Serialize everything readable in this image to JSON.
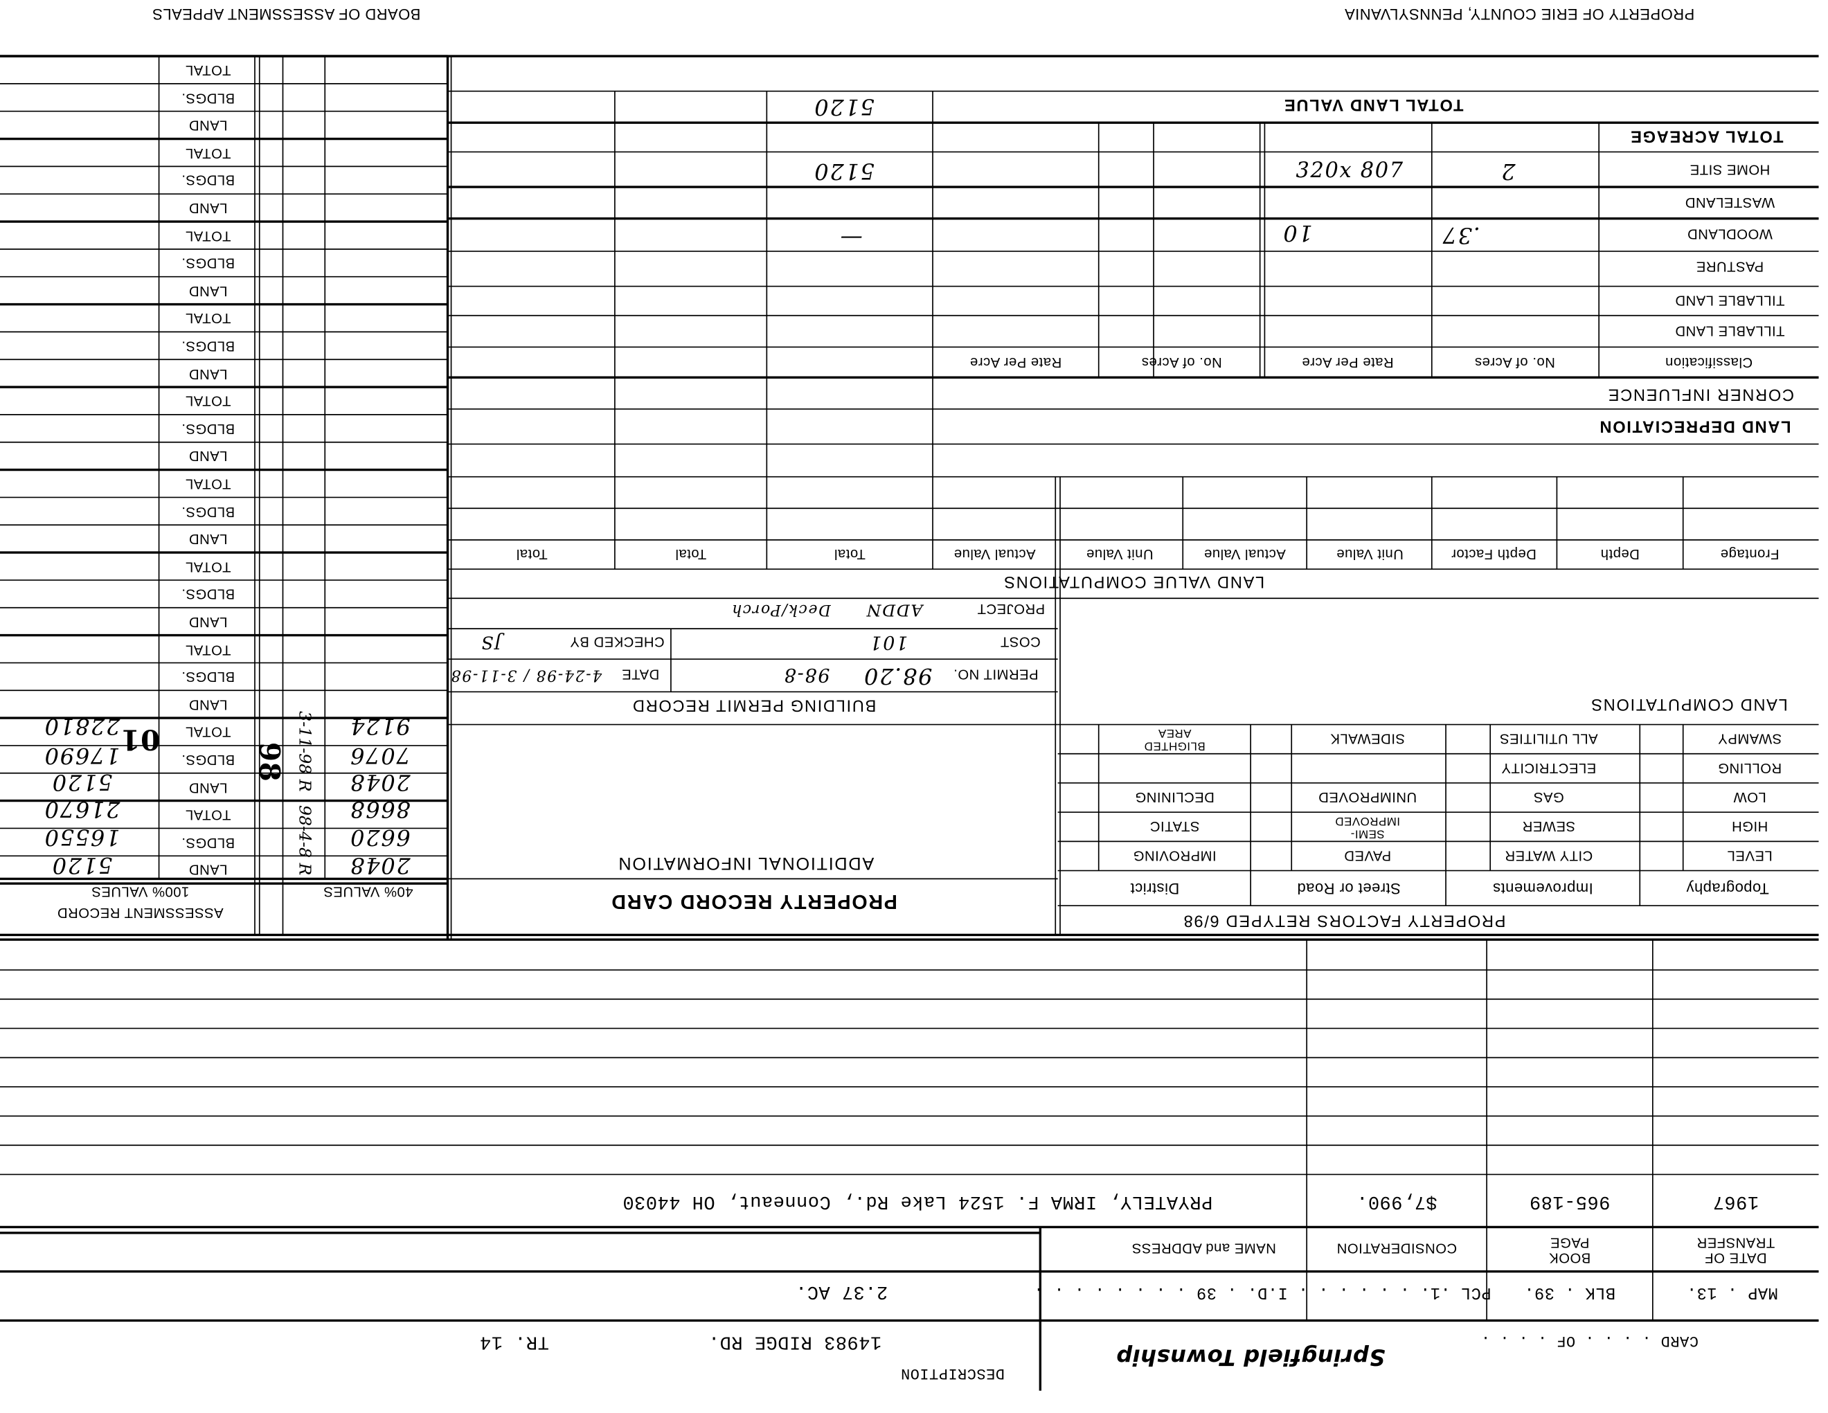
{
  "header": {
    "county": "PROPERTY OF ERIE COUNTY, PENNSYLVANIA",
    "board": "BOARD OF ASSESSMENT APPEALS"
  },
  "assessment": {
    "row_labels": [
      "LAND",
      "BLDGS.",
      "TOTAL"
    ],
    "title": "ASSESSMENT RECORD",
    "col_100": "100% VALUES",
    "col_40": "40% VALUES",
    "records": [
      {
        "land": "5120",
        "bldgs": "16550",
        "total": "21670",
        "land_40": "2048",
        "bldgs_40": "6620",
        "total_40": "8668",
        "note": "98-4-8 R"
      },
      {
        "land": "5120",
        "bldgs": "17690",
        "total": "22810",
        "land_40": "2048",
        "bldgs_40": "7076",
        "total_40": "9124",
        "note": "3-11-98 R"
      }
    ],
    "stamps": [
      "98",
      "01"
    ]
  },
  "card": {
    "title": "PROPERTY RECORD CARD",
    "additional_info": "ADDITIONAL INFORMATION"
  },
  "permit": {
    "title": "BUILDING PERMIT RECORD",
    "permit_no_label": "PERMIT NO.",
    "permit_no": "98.20",
    "permit_no_2": "98-8",
    "date_label": "DATE",
    "date": "4-24-98 / 3-11-98",
    "cost_label": "COST",
    "cost": "101",
    "checked_by_label": "CHECKED BY",
    "checked_by": "JS",
    "project_label": "PROJECT",
    "project": "ADDN",
    "project_2": "Deck/Porch"
  },
  "land_value": {
    "title": "LAND VALUE COMPUTATIONS",
    "columns": [
      "Frontage",
      "Depth",
      "Depth Factor",
      "Unit Value",
      "Actual Value",
      "Unit Value",
      "Actual Value",
      "Total",
      "Total",
      "Total"
    ],
    "depreciation": "LAND DEPRECIATION",
    "corner": "CORNER INFLUENCE",
    "class_columns": [
      "Classification",
      "No. of Acres",
      "Rate Per Acre",
      "No. of Acres",
      "Rate Per Acre"
    ],
    "rows": [
      {
        "label": "TILLABLE LAND"
      },
      {
        "label": "TILLABLE LAND"
      },
      {
        "label": "PASTURE"
      },
      {
        "label": "WOODLAND",
        "acres": ".37",
        "rate": "10",
        "value": "—"
      },
      {
        "label": "WASTELAND"
      },
      {
        "label": "HOME SITE",
        "acres": "2",
        "rate": "320x 807",
        "value": "5120"
      }
    ],
    "total_acreage": "TOTAL ACREAGE",
    "total_land_value": "TOTAL LAND VALUE",
    "total_land_value_amount": "5120"
  },
  "land_computations": {
    "title": "LAND COMPUTATIONS",
    "factors_title": "PROPERTY FACTORS RETYPED 6/98",
    "headers": [
      "Topography",
      "Improvements",
      "Street or Road",
      "District"
    ],
    "rows": [
      [
        "SWAMPY",
        "ALL UTILITIES",
        "SIDEWALK",
        "BLIGHTED AREA"
      ],
      [
        "ROLLING",
        "ELECTRICITY",
        "",
        ""
      ],
      [
        "LOW",
        "GAS",
        "UNIMPROVED",
        "DECLINING"
      ],
      [
        "HIGH",
        "SEWER",
        "SEMI-IMPROVED",
        "STATIC"
      ],
      [
        "LEVEL",
        "CITY WATER",
        "PAVED",
        "IMPROVING"
      ]
    ]
  },
  "transfers": {
    "headers": {
      "date": "DATE OF TRANSFER",
      "book_page": "BOOK PAGE",
      "consideration": "CONSIDERATION",
      "name_address": "NAME and ADDRESS"
    },
    "rows": [
      {
        "date": "1967",
        "book_page": "965-189",
        "consideration": "$7,990.",
        "name_address": "PRYATELY, IRMA F.   1524 Lake Rd., Conneaut, OH  44030"
      }
    ]
  },
  "parcel": {
    "map": "MAP . 13.",
    "blk": "BLK . 39.",
    "pcl_id": "PCL .1. . . . . . . I.D. . 39 . . . . . . . .",
    "acreage": "2.37 AC.",
    "card_of": "CARD . . . . OF . . . .",
    "township": "Springfield Township",
    "description_label": "DESCRIPTION",
    "address": "14983 RIDGE RD.",
    "tract": "TR. 14"
  }
}
